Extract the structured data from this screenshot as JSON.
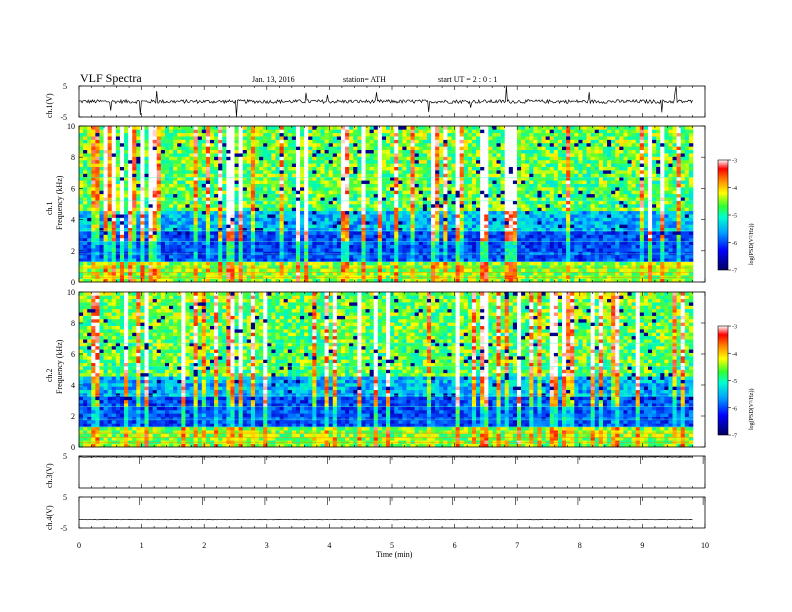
{
  "header": {
    "title": "VLF  Spectra",
    "date": "Jan. 13, 2016",
    "station": "station= ATH",
    "start": "start  UT =   2  : 0  : 1"
  },
  "chart_data": [
    {
      "type": "line",
      "name": "ch1-waveform",
      "ylabel": "ch.1(V)",
      "ylim": [
        -5,
        5
      ],
      "yticks": [
        "5",
        "-5"
      ],
      "xlim": [
        0,
        10
      ],
      "baseline": 0
    },
    {
      "type": "heatmap",
      "name": "ch1-spectrogram",
      "ylabel": [
        "ch.1",
        "Frequency  (kHz)"
      ],
      "ylim": [
        0,
        10
      ],
      "yticks": [
        "0",
        "2",
        "4",
        "6",
        "8",
        "10"
      ],
      "xlim": [
        0,
        9.8
      ],
      "colorbar": {
        "label": "log(PSD(V²/Hz))",
        "range": [
          -7,
          -3
        ],
        "ticks": [
          "-3",
          "-4",
          "-5",
          "-6",
          "-7"
        ]
      }
    },
    {
      "type": "heatmap",
      "name": "ch2-spectrogram",
      "ylabel": [
        "ch.2",
        "Frequency  (kHz)"
      ],
      "ylim": [
        0,
        10
      ],
      "yticks": [
        "0",
        "2",
        "4",
        "6",
        "8",
        "10"
      ],
      "xlim": [
        0,
        9.8
      ],
      "colorbar": {
        "label": "log(PSD(V²/Hz))",
        "range": [
          -7,
          -3
        ],
        "ticks": [
          "-3",
          "-4",
          "-5",
          "-6",
          "-7"
        ]
      }
    },
    {
      "type": "line",
      "name": "ch3-waveform",
      "ylabel": "ch.3(V)",
      "ylim": [
        -5,
        5
      ],
      "yticks": [
        "5"
      ],
      "xlim": [
        0,
        10
      ],
      "baseline": 4.7
    },
    {
      "type": "line",
      "name": "ch4-waveform",
      "ylabel": "ch.4(V)",
      "ylim": [
        -5,
        5
      ],
      "yticks": [
        "5",
        "-5"
      ],
      "xlim": [
        0,
        10
      ],
      "baseline": -2.3
    }
  ],
  "xaxis": {
    "label": "Time  (min)",
    "range": [
      0,
      10
    ],
    "ticks": [
      "0",
      "1",
      "2",
      "3",
      "4",
      "5",
      "6",
      "7",
      "8",
      "9",
      "10"
    ]
  },
  "colors": {
    "colormap": [
      "#00005a",
      "#0000c8",
      "#0050ff",
      "#00c8ff",
      "#00ffb0",
      "#50ff30",
      "#ffff00",
      "#ff9000",
      "#ff2000",
      "#ffffff"
    ]
  }
}
